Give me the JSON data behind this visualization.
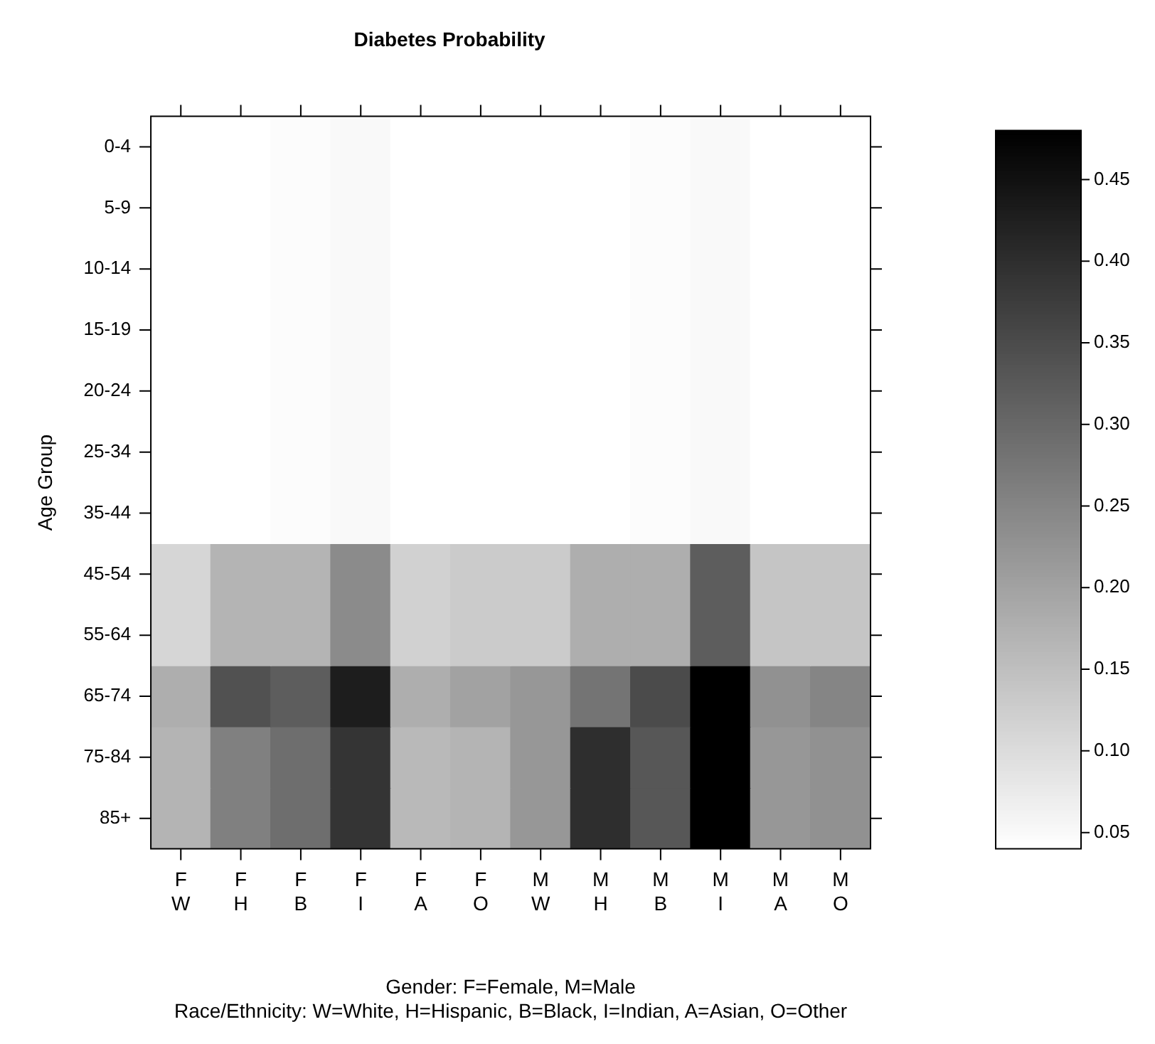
{
  "chart_data": {
    "type": "heatmap",
    "title": "Diabetes Probability",
    "xlabel": "Gender: F=Female, M=Male\nRace/Ethnicity: W=White, H=Hispanic, B=Black, I=Indian, A=Asian, O=Other",
    "ylabel": "Age Group",
    "categories": [
      "F\nW",
      "F\nH",
      "F\nB",
      "F\nI",
      "F\nA",
      "F\nO",
      "M\nW",
      "M\nH",
      "M\nB",
      "M\nI",
      "M\nA",
      "M\nO"
    ],
    "y_categories": [
      "0-4",
      "5-9",
      "10-14",
      "15-19",
      "20-24",
      "25-34",
      "35-44",
      "45-54",
      "55-64",
      "65-74",
      "75-84",
      "85+"
    ],
    "cells": [
      [
        0.03,
        0.03,
        0.045,
        0.05,
        0.03,
        0.03,
        0.03,
        0.03,
        0.045,
        0.05,
        0.03,
        0.03
      ],
      [
        0.03,
        0.03,
        0.045,
        0.05,
        0.03,
        0.03,
        0.03,
        0.03,
        0.045,
        0.05,
        0.03,
        0.03
      ],
      [
        0.03,
        0.03,
        0.045,
        0.05,
        0.03,
        0.03,
        0.03,
        0.03,
        0.045,
        0.05,
        0.03,
        0.03
      ],
      [
        0.03,
        0.03,
        0.045,
        0.05,
        0.03,
        0.03,
        0.03,
        0.03,
        0.045,
        0.05,
        0.03,
        0.03
      ],
      [
        0.03,
        0.03,
        0.045,
        0.05,
        0.03,
        0.03,
        0.03,
        0.03,
        0.045,
        0.05,
        0.03,
        0.03
      ],
      [
        0.03,
        0.03,
        0.045,
        0.05,
        0.03,
        0.03,
        0.03,
        0.03,
        0.045,
        0.05,
        0.03,
        0.03
      ],
      [
        0.03,
        0.03,
        0.045,
        0.05,
        0.03,
        0.03,
        0.03,
        0.03,
        0.045,
        0.05,
        0.03,
        0.03
      ],
      [
        0.11,
        0.17,
        0.17,
        0.24,
        0.12,
        0.13,
        0.13,
        0.18,
        0.18,
        0.32,
        0.14,
        0.14
      ],
      [
        0.11,
        0.17,
        0.17,
        0.24,
        0.12,
        0.13,
        0.13,
        0.18,
        0.18,
        0.32,
        0.14,
        0.14
      ],
      [
        0.18,
        0.34,
        0.32,
        0.43,
        0.18,
        0.2,
        0.22,
        0.28,
        0.35,
        0.48,
        0.23,
        0.25
      ],
      [
        0.17,
        0.26,
        0.29,
        0.39,
        0.16,
        0.17,
        0.22,
        0.4,
        0.33,
        0.48,
        0.22,
        0.23
      ],
      [
        0.17,
        0.26,
        0.29,
        0.39,
        0.16,
        0.17,
        0.22,
        0.4,
        0.33,
        0.48,
        0.22,
        0.23
      ]
    ],
    "clim": [
      0.04,
      0.48
    ],
    "cticks": [
      0.05,
      {
        "value": 0.1,
        "label": "0.10"
      },
      0.15,
      {
        "value": 0.2,
        "label": "0.20"
      },
      0.25,
      {
        "value": 0.3,
        "label": "0.30"
      },
      0.35,
      {
        "value": 0.4,
        "label": "0.40"
      },
      0.45
    ]
  }
}
